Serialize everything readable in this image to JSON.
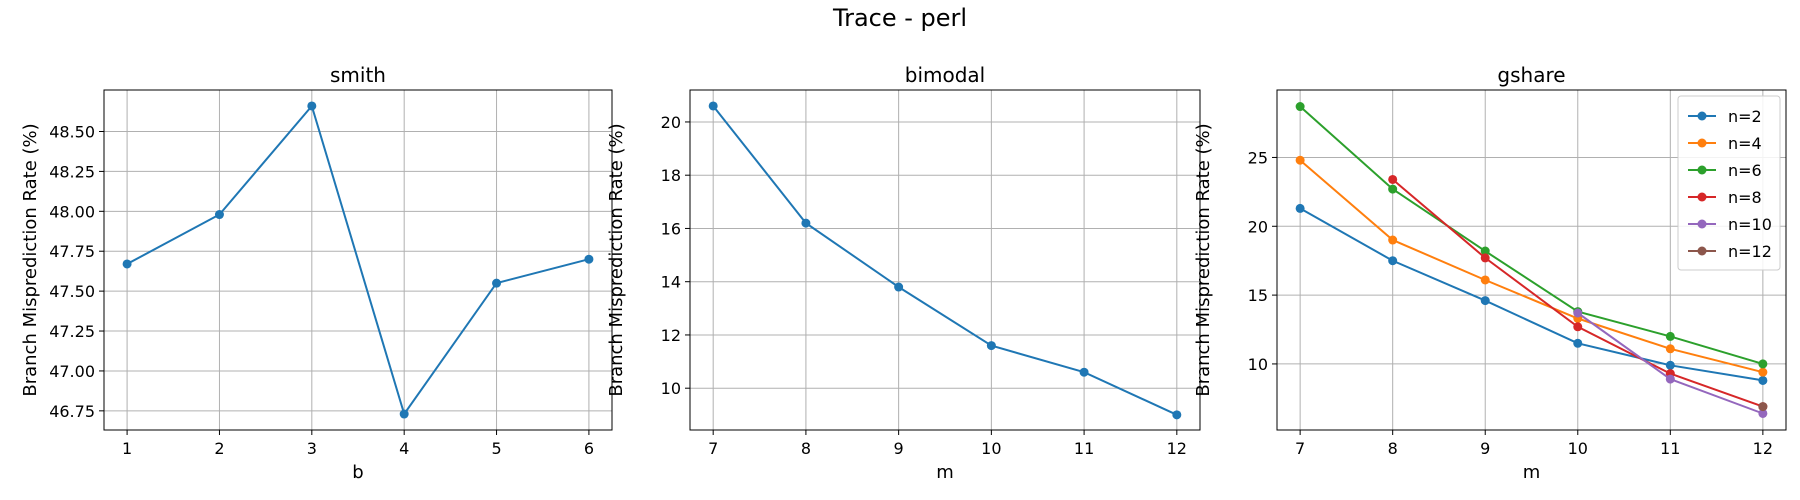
{
  "figure": {
    "title": "Trace - perl"
  },
  "chart_data": [
    {
      "type": "line",
      "title": "smith",
      "xlabel": "b",
      "ylabel": "Branch Misprediction Rate (%)",
      "xlim": [
        0.75,
        6.25
      ],
      "ylim": [
        46.63,
        48.76
      ],
      "xticks": [
        1,
        2,
        3,
        4,
        5,
        6
      ],
      "yticks": [
        46.75,
        47.0,
        47.25,
        47.5,
        47.75,
        48.0,
        48.25,
        48.5
      ],
      "ytick_labels": [
        "46.75",
        "47.00",
        "47.25",
        "47.50",
        "47.75",
        "48.00",
        "48.25",
        "48.50"
      ],
      "grid": true,
      "legend": null,
      "series": [
        {
          "x": [
            1,
            2,
            3,
            4,
            5,
            6
          ],
          "values": [
            47.67,
            47.98,
            48.66,
            46.73,
            47.55,
            47.7
          ],
          "color": "#1f77b4"
        }
      ]
    },
    {
      "type": "line",
      "title": "bimodal",
      "xlabel": "m",
      "ylabel": "Branch Misprediction Rate (%)",
      "xlim": [
        6.75,
        12.25
      ],
      "ylim": [
        8.43,
        21.2
      ],
      "xticks": [
        7,
        8,
        9,
        10,
        11,
        12
      ],
      "yticks": [
        10,
        12,
        14,
        16,
        18,
        20
      ],
      "ytick_labels": [
        "10",
        "12",
        "14",
        "16",
        "18",
        "20"
      ],
      "grid": true,
      "legend": null,
      "series": [
        {
          "x": [
            7,
            8,
            9,
            10,
            11,
            12
          ],
          "values": [
            20.6,
            16.2,
            13.8,
            11.6,
            10.6,
            9.0
          ],
          "color": "#1f77b4"
        }
      ]
    },
    {
      "type": "line",
      "title": "gshare",
      "xlabel": "m",
      "ylabel": "Branch Misprediction Rate (%)",
      "xlim": [
        6.75,
        12.25
      ],
      "ylim": [
        5.2,
        29.9
      ],
      "xticks": [
        7,
        8,
        9,
        10,
        11,
        12
      ],
      "yticks": [
        10,
        15,
        20,
        25
      ],
      "ytick_labels": [
        "10",
        "15",
        "20",
        "25"
      ],
      "grid": true,
      "legend": "top-right",
      "series": [
        {
          "name": "n=2",
          "x": [
            7,
            8,
            9,
            10,
            11,
            12
          ],
          "values": [
            21.3,
            17.5,
            14.6,
            11.5,
            9.9,
            8.8
          ],
          "color": "#1f77b4"
        },
        {
          "name": "n=4",
          "x": [
            7,
            8,
            9,
            10,
            11,
            12
          ],
          "values": [
            24.8,
            19.0,
            16.1,
            13.3,
            11.1,
            9.4
          ],
          "color": "#ff7f0e"
        },
        {
          "name": "n=6",
          "x": [
            7,
            8,
            9,
            10,
            11,
            12
          ],
          "values": [
            28.7,
            22.7,
            18.2,
            13.8,
            12.0,
            10.0
          ],
          "color": "#2ca02c"
        },
        {
          "name": "n=8",
          "x": [
            8,
            9,
            10,
            11,
            12
          ],
          "values": [
            23.4,
            17.7,
            12.7,
            9.3,
            6.9
          ],
          "color": "#d62728"
        },
        {
          "name": "n=10",
          "x": [
            10,
            11,
            12
          ],
          "values": [
            13.7,
            8.9,
            6.4
          ],
          "color": "#9467bd"
        },
        {
          "name": "n=12",
          "x": [
            12
          ],
          "values": [
            6.9
          ],
          "color": "#8c564b"
        }
      ]
    }
  ]
}
